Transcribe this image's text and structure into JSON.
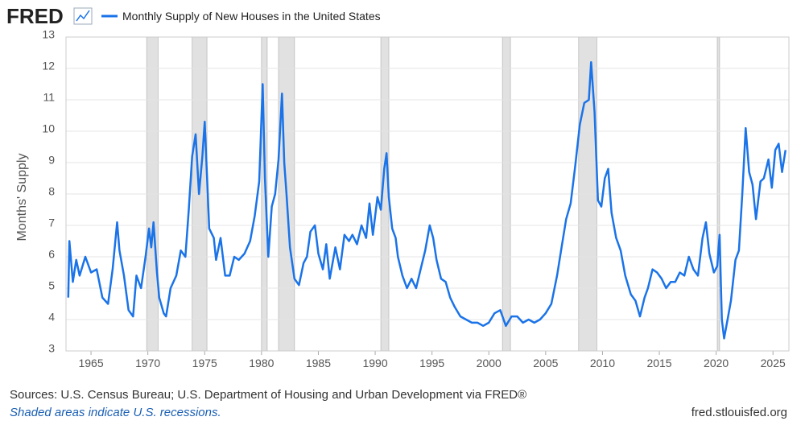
{
  "logo": "FRED",
  "footer": {
    "source": "Sources: U.S. Census Bureau; U.S. Department of Housing and Urban Development via FRED®",
    "note": "Shaded areas indicate U.S. recessions.",
    "site": "fred.stlouisfed.org"
  },
  "chart_data": {
    "type": "line",
    "ylabel": "Months' Supply",
    "xlim": [
      1962.8,
      2026.4
    ],
    "xticks": [
      1965,
      1970,
      1975,
      1980,
      1985,
      1990,
      1995,
      2000,
      2005,
      2010,
      2015,
      2020,
      2025
    ],
    "ylim": [
      3,
      13
    ],
    "yticks": [
      3,
      4,
      5,
      6,
      7,
      8,
      9,
      10,
      11,
      12,
      13
    ],
    "grid": true,
    "recessions": [
      [
        1969.9,
        1970.9
      ],
      [
        1973.9,
        1975.2
      ],
      [
        1980.0,
        1980.5
      ],
      [
        1981.5,
        1982.9
      ],
      [
        1990.5,
        1991.2
      ],
      [
        2001.2,
        2001.9
      ],
      [
        2007.9,
        2009.5
      ],
      [
        2020.1,
        2020.3
      ]
    ],
    "x": [
      1963.0,
      1963.1,
      1963.4,
      1963.7,
      1964.0,
      1964.5,
      1965.0,
      1965.5,
      1966.0,
      1966.5,
      1966.9,
      1967.3,
      1967.5,
      1967.9,
      1968.3,
      1968.7,
      1969.0,
      1969.4,
      1969.8,
      1970.1,
      1970.3,
      1970.5,
      1970.8,
      1971.0,
      1971.4,
      1971.6,
      1972.0,
      1972.5,
      1972.9,
      1973.3,
      1973.6,
      1973.9,
      1974.2,
      1974.5,
      1974.8,
      1975.0,
      1975.2,
      1975.4,
      1975.8,
      1976.0,
      1976.4,
      1976.8,
      1977.2,
      1977.6,
      1978.0,
      1978.5,
      1979.0,
      1979.4,
      1979.8,
      1980.1,
      1980.3,
      1980.6,
      1980.9,
      1981.2,
      1981.5,
      1981.8,
      1982.0,
      1982.2,
      1982.5,
      1982.9,
      1983.3,
      1983.7,
      1984.0,
      1984.3,
      1984.7,
      1985.0,
      1985.4,
      1985.7,
      1986.0,
      1986.5,
      1986.9,
      1987.3,
      1987.7,
      1988.0,
      1988.4,
      1988.8,
      1989.2,
      1989.5,
      1989.8,
      1990.2,
      1990.5,
      1990.8,
      1991.0,
      1991.2,
      1991.5,
      1991.8,
      1992.0,
      1992.4,
      1992.8,
      1993.2,
      1993.6,
      1994.0,
      1994.4,
      1994.8,
      1995.1,
      1995.4,
      1995.8,
      1996.2,
      1996.6,
      1997.0,
      1997.5,
      1998.0,
      1998.5,
      1999.0,
      1999.5,
      2000.0,
      2000.5,
      2001.0,
      2001.5,
      2002.0,
      2002.5,
      2003.0,
      2003.5,
      2004.0,
      2004.5,
      2005.0,
      2005.5,
      2006.0,
      2006.4,
      2006.8,
      2007.2,
      2007.6,
      2008.0,
      2008.4,
      2008.8,
      2009.0,
      2009.3,
      2009.6,
      2009.9,
      2010.2,
      2010.5,
      2010.8,
      2011.2,
      2011.6,
      2012.0,
      2012.5,
      2012.9,
      2013.3,
      2013.7,
      2014.0,
      2014.4,
      2014.8,
      2015.2,
      2015.6,
      2016.0,
      2016.4,
      2016.8,
      2017.2,
      2017.6,
      2018.0,
      2018.4,
      2018.8,
      2019.1,
      2019.4,
      2019.8,
      2020.1,
      2020.3,
      2020.5,
      2020.7,
      2021.0,
      2021.3,
      2021.7,
      2022.0,
      2022.3,
      2022.6,
      2022.9,
      2023.2,
      2023.5,
      2023.9,
      2024.2,
      2024.6,
      2024.9,
      2025.2,
      2025.5,
      2025.8,
      2026.1
    ],
    "series": [
      {
        "name": "Monthly Supply of New Houses in the United States",
        "color": "#1a73e8",
        "values": [
          4.7,
          6.5,
          5.2,
          5.9,
          5.4,
          6.0,
          5.5,
          5.6,
          4.7,
          4.5,
          5.6,
          7.1,
          6.2,
          5.4,
          4.3,
          4.1,
          5.4,
          5.0,
          6.0,
          6.9,
          6.3,
          7.1,
          5.5,
          4.7,
          4.2,
          4.1,
          5.0,
          5.4,
          6.2,
          6.0,
          7.5,
          9.2,
          9.9,
          8.0,
          9.2,
          10.3,
          8.6,
          6.9,
          6.6,
          5.9,
          6.6,
          5.4,
          5.4,
          6.0,
          5.9,
          6.1,
          6.5,
          7.3,
          8.4,
          11.5,
          8.5,
          6.0,
          7.6,
          8.0,
          9.1,
          11.2,
          9.0,
          8.0,
          6.3,
          5.3,
          5.1,
          5.8,
          6.0,
          6.8,
          7.0,
          6.1,
          5.6,
          6.4,
          5.3,
          6.3,
          5.6,
          6.7,
          6.5,
          6.7,
          6.4,
          7.0,
          6.6,
          7.7,
          6.7,
          7.9,
          7.5,
          8.8,
          9.3,
          7.9,
          6.9,
          6.6,
          6.0,
          5.4,
          5.0,
          5.3,
          5.0,
          5.6,
          6.2,
          7.0,
          6.6,
          5.9,
          5.3,
          5.2,
          4.7,
          4.4,
          4.1,
          4.0,
          3.9,
          3.9,
          3.8,
          3.9,
          4.2,
          4.3,
          3.8,
          4.1,
          4.1,
          3.9,
          4.0,
          3.9,
          4.0,
          4.2,
          4.5,
          5.4,
          6.3,
          7.2,
          7.7,
          8.9,
          10.2,
          10.9,
          11.0,
          12.2,
          10.6,
          7.8,
          7.6,
          8.5,
          8.8,
          7.4,
          6.6,
          6.2,
          5.4,
          4.8,
          4.6,
          4.1,
          4.7,
          5.0,
          5.6,
          5.5,
          5.3,
          5.0,
          5.2,
          5.2,
          5.5,
          5.4,
          6.0,
          5.6,
          5.4,
          6.6,
          7.1,
          6.1,
          5.5,
          5.7,
          6.7,
          4.0,
          3.4,
          4.0,
          4.6,
          5.9,
          6.2,
          8.0,
          10.1,
          8.7,
          8.3,
          7.2,
          8.4,
          8.5,
          9.1,
          8.2,
          9.4,
          9.6,
          8.7,
          9.4
        ]
      }
    ]
  }
}
